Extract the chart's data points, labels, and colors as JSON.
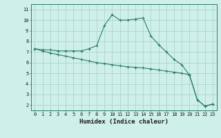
{
  "xlabel": "Humidex (Indice chaleur)",
  "bg_color": "#cff0ea",
  "grid_color": "#aad4cc",
  "line_color": "#2a7a6a",
  "xlim": [
    -0.5,
    23.5
  ],
  "ylim": [
    1.5,
    11.5
  ],
  "xticks": [
    0,
    1,
    2,
    3,
    4,
    5,
    6,
    7,
    8,
    9,
    10,
    11,
    12,
    13,
    14,
    15,
    16,
    17,
    18,
    19,
    20,
    21,
    22,
    23
  ],
  "yticks": [
    2,
    3,
    4,
    5,
    6,
    7,
    8,
    9,
    10,
    11
  ],
  "line1_x": [
    0,
    1,
    2,
    3,
    4,
    5,
    6,
    7,
    8,
    9,
    10,
    11,
    12,
    13,
    14,
    15,
    16,
    17,
    18,
    19,
    20,
    21,
    22,
    23
  ],
  "line1_y": [
    7.3,
    7.2,
    7.2,
    7.1,
    7.1,
    7.1,
    7.1,
    7.3,
    7.6,
    9.5,
    10.5,
    10.0,
    10.0,
    10.1,
    10.2,
    8.5,
    7.7,
    7.0,
    6.3,
    5.8,
    4.8,
    2.5,
    1.9,
    2.1
  ],
  "line2_x": [
    0,
    1,
    2,
    3,
    4,
    5,
    6,
    7,
    8,
    9,
    10,
    11,
    12,
    13,
    14,
    15,
    16,
    17,
    18,
    19,
    20,
    21,
    22,
    23
  ],
  "line2_y": [
    7.3,
    7.1,
    6.9,
    6.75,
    6.6,
    6.45,
    6.3,
    6.15,
    6.0,
    5.9,
    5.8,
    5.7,
    5.6,
    5.55,
    5.5,
    5.4,
    5.3,
    5.2,
    5.1,
    5.0,
    4.85,
    2.5,
    1.9,
    2.1
  ]
}
